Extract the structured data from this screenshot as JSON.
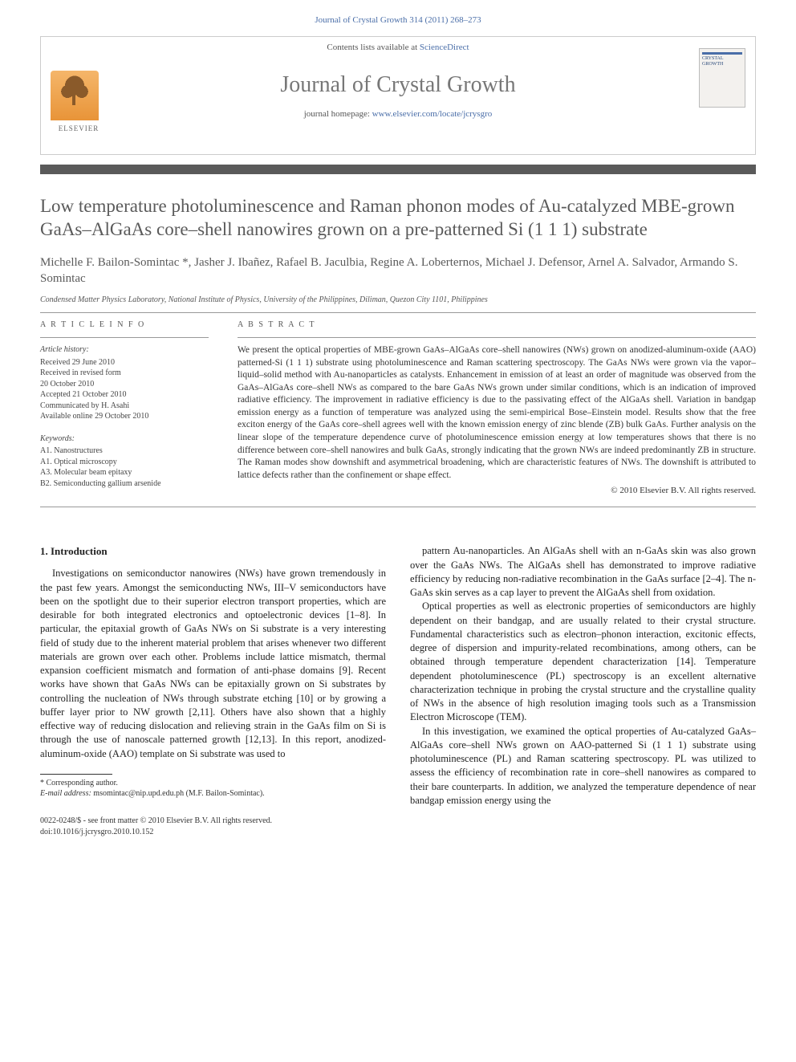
{
  "header": {
    "citation": "Journal of Crystal Growth 314 (2011) 268–273",
    "contents_line_pre": "Contents lists available at ",
    "contents_link": "ScienceDirect",
    "journal_title": "Journal of Crystal Growth",
    "homepage_pre": "journal homepage: ",
    "homepage_link": "www.elsevier.com/locate/jcrysgro",
    "publisher": "ELSEVIER",
    "thumb_line1": "CRYSTAL",
    "thumb_line2": "GROWTH"
  },
  "article": {
    "title": "Low temperature photoluminescence and Raman phonon modes of Au-catalyzed MBE-grown GaAs–AlGaAs core–shell nanowires grown on a pre-patterned Si (1 1 1) substrate",
    "authors": "Michelle F. Bailon-Somintac *, Jasher J. Ibañez, Rafael B. Jaculbia, Regine A. Loberternos, Michael J. Defensor, Arnel A. Salvador, Armando S. Somintac",
    "affiliation": "Condensed Matter Physics Laboratory, National Institute of Physics, University of the Philippines, Diliman, Quezon City 1101, Philippines"
  },
  "info": {
    "heading": "A R T I C L E   I N F O",
    "history_label": "Article history:",
    "history": [
      "Received 29 June 2010",
      "Received in revised form",
      "20 October 2010",
      "Accepted 21 October 2010",
      "Communicated by H. Asahi",
      "Available online 29 October 2010"
    ],
    "keywords_label": "Keywords:",
    "keywords": [
      "A1. Nanostructures",
      "A1. Optical microscopy",
      "A3. Molecular beam epitaxy",
      "B2. Semiconducting gallium arsenide"
    ]
  },
  "abstract": {
    "heading": "A B S T R A C T",
    "text": "We present the optical properties of MBE-grown GaAs–AlGaAs core–shell nanowires (NWs) grown on anodized-aluminum-oxide (AAO) patterned-Si (1 1 1) substrate using photoluminescence and Raman scattering spectroscopy. The GaAs NWs were grown via the vapor–liquid–solid method with Au-nanoparticles as catalysts. Enhancement in emission of at least an order of magnitude was observed from the GaAs–AlGaAs core–shell NWs as compared to the bare GaAs NWs grown under similar conditions, which is an indication of improved radiative efficiency. The improvement in radiative efficiency is due to the passivating effect of the AlGaAs shell. Variation in bandgap emission energy as a function of temperature was analyzed using the semi-empirical Bose–Einstein model. Results show that the free exciton energy of the GaAs core–shell agrees well with the known emission energy of zinc blende (ZB) bulk GaAs. Further analysis on the linear slope of the temperature dependence curve of photoluminescence emission energy at low temperatures shows that there is no difference between core–shell nanowires and bulk GaAs, strongly indicating that the grown NWs are indeed predominantly ZB in structure. The Raman modes show downshift and asymmetrical broadening, which are characteristic features of NWs. The downshift is attributed to lattice defects rather than the confinement or shape effect.",
    "copyright": "© 2010 Elsevier B.V. All rights reserved."
  },
  "body": {
    "section_num": "1.",
    "section_title": "Introduction",
    "col1_p1": "Investigations on semiconductor nanowires (NWs) have grown tremendously in the past few years. Amongst the semiconducting NWs, III–V semiconductors have been on the spotlight due to their superior electron transport properties, which are desirable for both integrated electronics and optoelectronic devices [1–8]. In particular, the epitaxial growth of GaAs NWs on Si substrate is a very interesting field of study due to the inherent material problem that arises whenever two different materials are grown over each other. Problems include lattice mismatch, thermal expansion coefficient mismatch and formation of anti-phase domains [9]. Recent works have shown that GaAs NWs can be epitaxially grown on Si substrates by controlling the nucleation of NWs through substrate etching [10] or by growing a buffer layer prior to NW growth [2,11]. Others have also shown that a highly effective way of reducing dislocation and relieving strain in the GaAs film on Si is through the use of nanoscale patterned growth [12,13]. In this report, anodized-aluminum-oxide (AAO) template on Si substrate was used to",
    "col2_p1": "pattern Au-nanoparticles. An AlGaAs shell with an n-GaAs skin was also grown over the GaAs NWs. The AlGaAs shell has demonstrated to improve radiative efficiency by reducing non-radiative recombination in the GaAs surface [2–4]. The n-GaAs skin serves as a cap layer to prevent the AlGaAs shell from oxidation.",
    "col2_p2": "Optical properties as well as electronic properties of semiconductors are highly dependent on their bandgap, and are usually related to their crystal structure. Fundamental characteristics such as electron–phonon interaction, excitonic effects, degree of dispersion and impurity-related recombinations, among others, can be obtained through temperature dependent characterization [14]. Temperature dependent photoluminescence (PL) spectroscopy is an excellent alternative characterization technique in probing the crystal structure and the crystalline quality of NWs in the absence of high resolution imaging tools such as a Transmission Electron Microscope (TEM).",
    "col2_p3": "In this investigation, we examined the optical properties of Au-catalyzed GaAs–AlGaAs core–shell NWs grown on AAO-patterned Si (1 1 1) substrate using photoluminescence (PL) and Raman scattering spectroscopy. PL was utilized to assess the efficiency of recombination rate in core–shell nanowires as compared to their bare counterparts. In addition, we analyzed the temperature dependence of near bandgap emission energy using the"
  },
  "footnotes": {
    "corr": "* Corresponding author.",
    "email_lbl": "E-mail address:",
    "email": "msomintac@nip.upd.edu.ph (M.F. Bailon-Somintac)."
  },
  "footer": {
    "issn": "0022-0248/$ - see front matter © 2010 Elsevier B.V. All rights reserved.",
    "doi": "doi:10.1016/j.jcrysgro.2010.10.152"
  },
  "colors": {
    "link": "#4a6ea8",
    "rule": "#5a5a5a",
    "title_gray": "#5a5a5a"
  }
}
